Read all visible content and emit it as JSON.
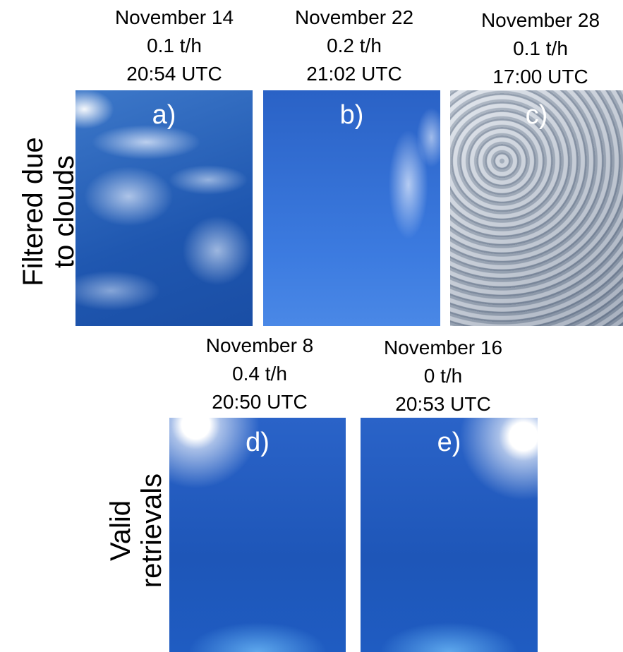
{
  "row_labels": [
    [
      "Filtered due",
      "to clouds"
    ],
    [
      "Valid",
      "retrievals"
    ]
  ],
  "panels": [
    {
      "letter": "a)",
      "date": "November 14",
      "rate": "0.1 t/h",
      "time": "20:54 UTC"
    },
    {
      "letter": "b)",
      "date": "November 22",
      "rate": "0.2 t/h",
      "time": "21:02 UTC"
    },
    {
      "letter": "c)",
      "date": "November 28",
      "rate": "0.1 t/h",
      "time": "17:00 UTC"
    },
    {
      "letter": "d)",
      "date": "November 8",
      "rate": "0.4 t/h",
      "time": "20:50 UTC"
    },
    {
      "letter": "e)",
      "date": "November 16",
      "rate": "0 t/h",
      "time": "20:53 UTC"
    }
  ]
}
